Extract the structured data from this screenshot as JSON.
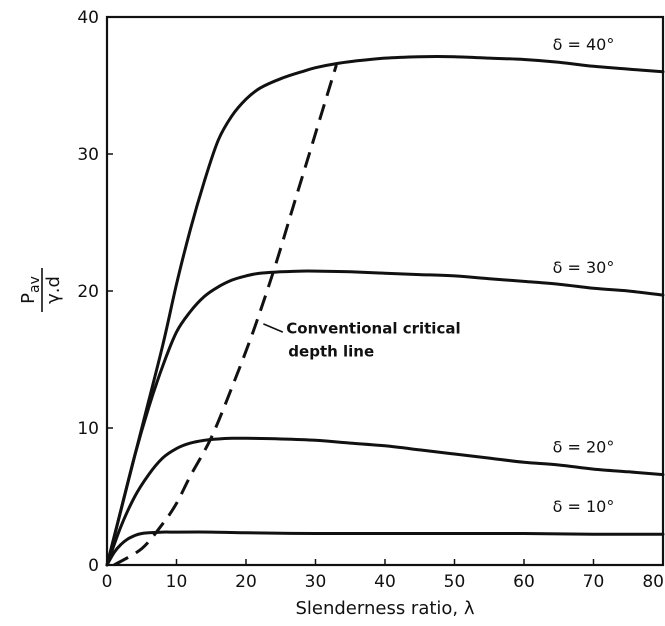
{
  "chart_data": {
    "type": "line",
    "title": "",
    "xlabel": "Slenderness ratio, λ",
    "ylabel": {
      "numerator": "P",
      "numerator_subscript": "av",
      "denominator": "γ.d"
    },
    "xlim": [
      0,
      80
    ],
    "ylim": [
      0,
      40
    ],
    "x_ticks": [
      "0",
      "10",
      "20",
      "30",
      "40",
      "50",
      "60",
      "70",
      "80"
    ],
    "y_ticks": [
      "0",
      "10",
      "20",
      "30",
      "40"
    ],
    "grid": false,
    "series": [
      {
        "name": "δ = 40°",
        "x": [
          0,
          2,
          5,
          8,
          10,
          12,
          14,
          16,
          18,
          20,
          22,
          25,
          28,
          30,
          33,
          36,
          40,
          45,
          50,
          55,
          60,
          65,
          70,
          75,
          80
        ],
        "y": [
          0,
          4,
          10,
          16,
          20.5,
          24.5,
          28,
          31,
          32.8,
          34,
          34.8,
          35.5,
          36,
          36.3,
          36.6,
          36.8,
          37,
          37.1,
          37.1,
          37,
          36.9,
          36.7,
          36.4,
          36.2,
          36
        ]
      },
      {
        "name": "δ = 30°",
        "x": [
          0,
          2,
          4,
          6,
          8,
          10,
          12,
          14,
          16,
          18,
          20,
          22,
          25,
          28,
          30,
          35,
          40,
          45,
          50,
          55,
          60,
          65,
          70,
          75,
          80
        ],
        "y": [
          0,
          4,
          8,
          11.5,
          14.5,
          17,
          18.5,
          19.6,
          20.3,
          20.8,
          21.1,
          21.3,
          21.4,
          21.45,
          21.45,
          21.4,
          21.3,
          21.2,
          21.1,
          20.9,
          20.7,
          20.5,
          20.2,
          20,
          19.7
        ]
      },
      {
        "name": "δ = 20°",
        "x": [
          0,
          2,
          4,
          6,
          8,
          10,
          12,
          14,
          16,
          18,
          20,
          25,
          30,
          35,
          40,
          45,
          50,
          55,
          60,
          65,
          70,
          75,
          80
        ],
        "y": [
          0,
          2.8,
          5,
          6.6,
          7.8,
          8.5,
          8.9,
          9.1,
          9.2,
          9.25,
          9.25,
          9.2,
          9.1,
          8.9,
          8.7,
          8.4,
          8.1,
          7.8,
          7.5,
          7.3,
          7,
          6.8,
          6.6
        ]
      },
      {
        "name": "δ = 10°",
        "x": [
          0,
          1,
          2,
          3,
          4,
          5,
          6,
          8,
          10,
          15,
          20,
          30,
          40,
          50,
          60,
          70,
          80
        ],
        "y": [
          0,
          0.9,
          1.5,
          1.9,
          2.15,
          2.3,
          2.35,
          2.4,
          2.4,
          2.4,
          2.35,
          2.3,
          2.3,
          2.3,
          2.3,
          2.25,
          2.25
        ]
      }
    ],
    "critical_line": {
      "label": [
        "Conventional critical",
        "depth line"
      ],
      "x": [
        1,
        5,
        8,
        10,
        12,
        15,
        18,
        21,
        24,
        27,
        30,
        33
      ],
      "y": [
        0,
        1.2,
        3,
        4.5,
        6.5,
        9.3,
        13,
        17,
        21.5,
        26.5,
        31.5,
        36.5
      ]
    }
  }
}
